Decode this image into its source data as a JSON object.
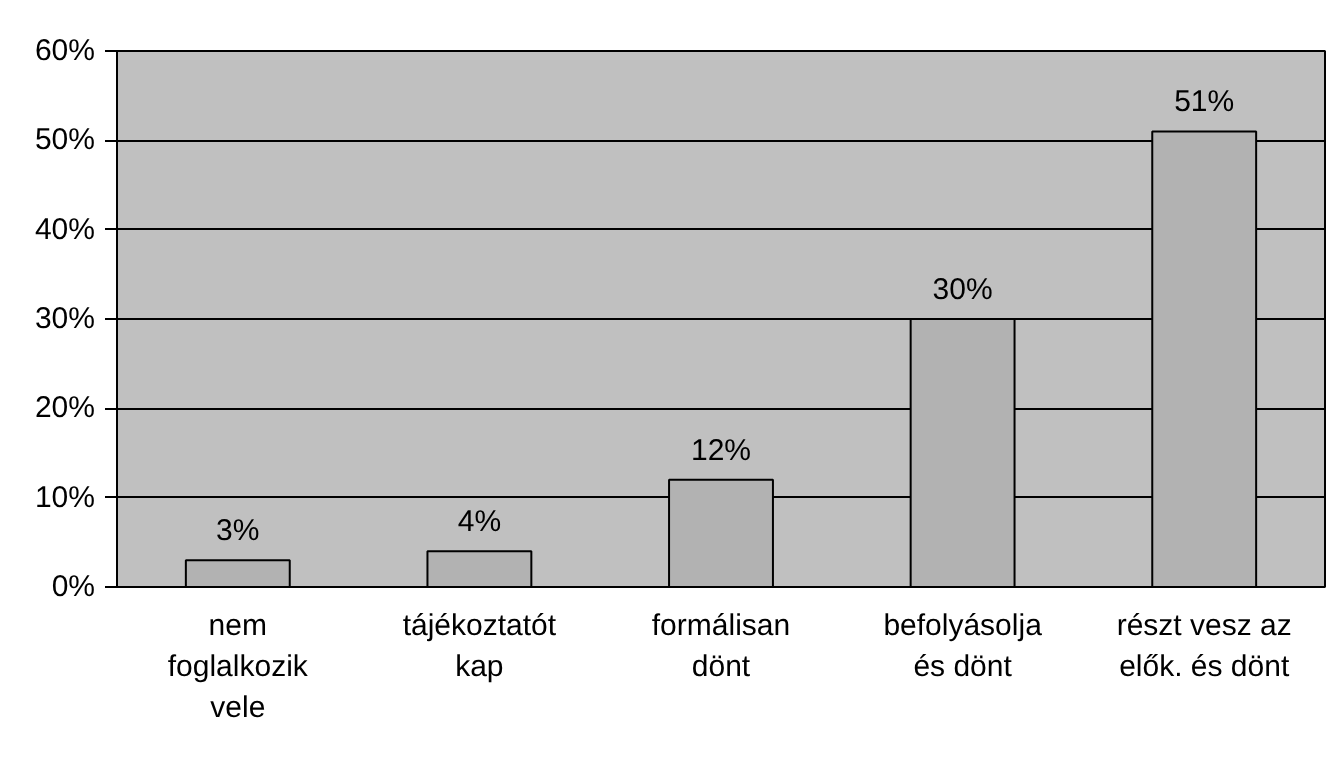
{
  "chart_data": {
    "type": "bar",
    "categories": [
      "nem foglalkozik vele",
      "tájékoztatót kap",
      "formálisan dönt",
      "befolyásolja és dönt",
      "részt vesz az elők. és dönt"
    ],
    "values": [
      3,
      4,
      12,
      30,
      51
    ],
    "value_labels": [
      "3%",
      "4%",
      "12%",
      "30%",
      "51%"
    ],
    "color": "#b2b2b2",
    "ylim": [
      0,
      60
    ],
    "yticks": [
      {
        "value": 0,
        "label": "0%"
      },
      {
        "value": 10,
        "label": "10%"
      },
      {
        "value": 20,
        "label": "20%"
      },
      {
        "value": 30,
        "label": "30%"
      },
      {
        "value": 40,
        "label": "40%"
      },
      {
        "value": 50,
        "label": "50%"
      },
      {
        "value": 60,
        "label": "60%"
      }
    ],
    "grid": "y"
  }
}
